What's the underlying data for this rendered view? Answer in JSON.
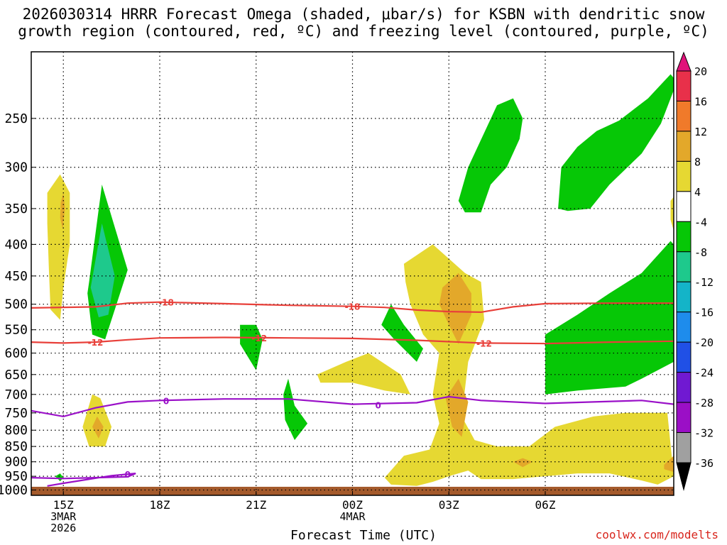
{
  "header": {
    "title_line1": "2026030314 HRRR Forecast Omega (shaded, μbar/s) for KSBN with dendritic snow",
    "title_line2": "growth region (contoured, red, ºC) and freezing level (contoured, purple, ºC)"
  },
  "footer": {
    "credit": "coolwx.com/modelts"
  },
  "chart_data": {
    "type": "heatmap",
    "title": "2026030314 HRRR Forecast Omega (shaded, μbar/s) for KSBN with dendritic snow growth region (contoured, red, ºC) and freezing level (contoured, purple, ºC)",
    "xlabel": "Forecast Time (UTC)",
    "ylabel": "",
    "x_range_hours_since_14z": [
      0,
      20
    ],
    "y_scale": "log",
    "y_range_hPa": [
      1020,
      195
    ],
    "y_ticks": [
      250,
      300,
      350,
      400,
      450,
      500,
      550,
      600,
      650,
      700,
      750,
      800,
      850,
      900,
      950,
      1000
    ],
    "x_ticks": [
      {
        "hour": 1,
        "lines": [
          "15Z",
          "3MAR",
          "2026"
        ]
      },
      {
        "hour": 4,
        "lines": [
          "18Z"
        ]
      },
      {
        "hour": 7,
        "lines": [
          "21Z"
        ]
      },
      {
        "hour": 10,
        "lines": [
          "00Z",
          "4MAR"
        ]
      },
      {
        "hour": 13,
        "lines": [
          "03Z"
        ]
      },
      {
        "hour": 16,
        "lines": [
          "06Z"
        ]
      }
    ],
    "grid": true,
    "colorbar": {
      "labels": [
        "20",
        "16",
        "12",
        "8",
        "4",
        "-4",
        "-8",
        "-12",
        "-16",
        "-20",
        "-24",
        "-28",
        "-32",
        "-36"
      ],
      "colors": [
        "#e8304a",
        "#f07a2a",
        "#e3a82a",
        "#e6d832",
        "#ffffff",
        "#06c706",
        "#1ec98c",
        "#14b4c8",
        "#1e8cec",
        "#2050e6",
        "#7019d2",
        "#9b0fc6",
        "#a0a0a0"
      ],
      "top_arrow_color": "#e0127a",
      "bottom_arrow_color": "#000000"
    },
    "contours": [
      {
        "name": "-18",
        "color": "#e8403a",
        "points": [
          [
            0,
            507
          ],
          [
            2,
            505
          ],
          [
            3,
            498
          ],
          [
            4,
            496
          ],
          [
            6,
            499
          ],
          [
            8,
            502
          ],
          [
            10,
            504
          ],
          [
            11,
            506
          ],
          [
            12,
            511
          ],
          [
            13,
            514
          ],
          [
            14,
            515
          ],
          [
            15,
            505
          ],
          [
            16,
            499
          ],
          [
            18,
            498
          ],
          [
            20,
            498
          ]
        ],
        "labels": [
          [
            4.2,
            496
          ],
          [
            10,
            504
          ]
        ]
      },
      {
        "name": "-12",
        "color": "#e8403a",
        "points": [
          [
            0,
            576
          ],
          [
            1,
            578
          ],
          [
            2,
            576
          ],
          [
            3,
            571
          ],
          [
            4,
            567
          ],
          [
            6,
            566
          ],
          [
            8,
            567
          ],
          [
            10,
            568
          ],
          [
            12,
            572
          ],
          [
            14,
            578
          ],
          [
            16,
            579
          ],
          [
            18,
            576
          ],
          [
            20,
            574
          ]
        ],
        "labels": [
          [
            2,
            576
          ],
          [
            7.1,
            567
          ],
          [
            14.1,
            578
          ]
        ]
      },
      {
        "name": "0",
        "color": "#9a10c8",
        "points": [
          [
            0,
            744
          ],
          [
            1,
            760
          ],
          [
            2,
            736
          ],
          [
            3,
            720
          ],
          [
            4,
            716
          ],
          [
            6,
            712
          ],
          [
            8,
            712
          ],
          [
            10,
            726
          ],
          [
            12,
            722
          ],
          [
            13,
            706
          ],
          [
            14,
            716
          ],
          [
            16,
            724
          ],
          [
            17.5,
            720
          ],
          [
            19,
            716
          ],
          [
            20,
            726
          ]
        ],
        "labels": [
          [
            4.2,
            716
          ],
          [
            10.8,
            728
          ]
        ]
      },
      {
        "name": "0",
        "color": "#9a10c8",
        "points": [
          [
            0,
            955
          ],
          [
            1,
            958
          ],
          [
            2,
            955
          ],
          [
            3,
            952
          ],
          [
            3.25,
            940
          ],
          [
            2.5,
            948
          ],
          [
            1,
            975
          ],
          [
            0.5,
            985
          ]
        ],
        "labels": [
          [
            3,
            942
          ]
        ]
      }
    ],
    "omega_regions": [
      {
        "level": "4",
        "color": "#e6d832",
        "points": [
          [
            0.5,
            330
          ],
          [
            0.9,
            308
          ],
          [
            1.2,
            330
          ],
          [
            1.2,
            400
          ],
          [
            1.0,
            470
          ],
          [
            0.9,
            530
          ],
          [
            0.6,
            510
          ],
          [
            0.55,
            440
          ],
          [
            0.5,
            370
          ]
        ]
      },
      {
        "level": "8",
        "color": "#e3a82a",
        "points": [
          [
            0.92,
            342
          ],
          [
            1.0,
            330
          ],
          [
            1.05,
            350
          ],
          [
            0.98,
            378
          ],
          [
            0.9,
            362
          ]
        ]
      },
      {
        "level": "-4",
        "color": "#06c706",
        "points": [
          [
            1.8,
            460
          ],
          [
            2.2,
            320
          ],
          [
            3.0,
            440
          ],
          [
            2.3,
            570
          ],
          [
            1.9,
            560
          ],
          [
            1.75,
            480
          ]
        ]
      },
      {
        "level": "-8",
        "color": "#1ec98c",
        "points": [
          [
            1.85,
            470
          ],
          [
            2.2,
            370
          ],
          [
            2.6,
            450
          ],
          [
            2.4,
            520
          ],
          [
            2.1,
            525
          ]
        ]
      },
      {
        "level": "4",
        "color": "#e6d832",
        "points": [
          [
            1.6,
            790
          ],
          [
            1.9,
            700
          ],
          [
            2.15,
            710
          ],
          [
            2.5,
            790
          ],
          [
            2.3,
            850
          ],
          [
            1.8,
            850
          ]
        ]
      },
      {
        "level": "8",
        "color": "#e3a82a",
        "points": [
          [
            1.9,
            790
          ],
          [
            2.05,
            760
          ],
          [
            2.25,
            790
          ],
          [
            2.1,
            825
          ]
        ]
      },
      {
        "level": "-4",
        "color": "#06c706",
        "points": [
          [
            0.75,
            950
          ],
          [
            0.9,
            940
          ],
          [
            1.0,
            955
          ],
          [
            0.9,
            968
          ]
        ]
      },
      {
        "level": "-4",
        "color": "#06c706",
        "points": [
          [
            6.5,
            540
          ],
          [
            7.0,
            540
          ],
          [
            7.2,
            570
          ],
          [
            7.0,
            640
          ],
          [
            6.5,
            580
          ]
        ]
      },
      {
        "level": "-4",
        "color": "#06c706",
        "points": [
          [
            7.85,
            700
          ],
          [
            8.0,
            660
          ],
          [
            8.2,
            730
          ],
          [
            8.6,
            780
          ],
          [
            8.2,
            830
          ],
          [
            7.9,
            770
          ]
        ]
      },
      {
        "level": "4",
        "color": "#e6d832",
        "points": [
          [
            8.9,
            650
          ],
          [
            9.8,
            620
          ],
          [
            10.5,
            600
          ],
          [
            11.5,
            650
          ],
          [
            11.8,
            700
          ],
          [
            11.0,
            690
          ],
          [
            10.0,
            670
          ],
          [
            9.0,
            670
          ]
        ]
      },
      {
        "level": "-4",
        "color": "#06c706",
        "points": [
          [
            10.9,
            540
          ],
          [
            11.2,
            500
          ],
          [
            11.6,
            540
          ],
          [
            12.2,
            590
          ],
          [
            12.0,
            620
          ],
          [
            11.3,
            570
          ]
        ]
      },
      {
        "level": "4",
        "color": "#e6d832",
        "points": [
          [
            11.6,
            430
          ],
          [
            12.5,
            400
          ],
          [
            13.5,
            445
          ],
          [
            14.0,
            460
          ],
          [
            14.1,
            530
          ],
          [
            13.6,
            620
          ],
          [
            13.4,
            760
          ],
          [
            13.8,
            830
          ],
          [
            14.5,
            850
          ],
          [
            15.5,
            850
          ],
          [
            16.3,
            790
          ],
          [
            17.5,
            760
          ],
          [
            18.5,
            750
          ],
          [
            19.8,
            750
          ],
          [
            20,
            950
          ],
          [
            19.5,
            980
          ],
          [
            19.0,
            965
          ],
          [
            18.0,
            940
          ],
          [
            17.0,
            940
          ],
          [
            15.0,
            960
          ],
          [
            14.0,
            960
          ],
          [
            13.6,
            930
          ],
          [
            13.0,
            950
          ],
          [
            12.5,
            970
          ],
          [
            12.0,
            985
          ],
          [
            11.2,
            980
          ],
          [
            11.0,
            955
          ],
          [
            11.6,
            880
          ],
          [
            12.4,
            860
          ],
          [
            12.7,
            780
          ],
          [
            12.5,
            700
          ],
          [
            12.7,
            600
          ],
          [
            12.2,
            560
          ],
          [
            11.8,
            500
          ],
          [
            11.65,
            460
          ]
        ]
      },
      {
        "level": "8",
        "color": "#e3a82a",
        "points": [
          [
            12.8,
            470
          ],
          [
            13.3,
            445
          ],
          [
            13.7,
            480
          ],
          [
            13.7,
            520
          ],
          [
            13.3,
            580
          ],
          [
            13.0,
            540
          ],
          [
            12.7,
            500
          ]
        ]
      },
      {
        "level": "8",
        "color": "#e3a82a",
        "points": [
          [
            12.9,
            710
          ],
          [
            13.3,
            660
          ],
          [
            13.6,
            720
          ],
          [
            13.4,
            820
          ],
          [
            13.1,
            790
          ]
        ]
      },
      {
        "level": "8",
        "color": "#e3a82a",
        "points": [
          [
            15.0,
            900
          ],
          [
            15.3,
            888
          ],
          [
            15.6,
            900
          ],
          [
            15.3,
            918
          ]
        ]
      },
      {
        "level": "8",
        "color": "#e3a82a",
        "points": [
          [
            19.7,
            910
          ],
          [
            20,
            880
          ],
          [
            20,
            935
          ],
          [
            19.7,
            925
          ]
        ]
      },
      {
        "level": "-4",
        "color": "#06c706",
        "points": [
          [
            13.6,
            300
          ],
          [
            14.5,
            238
          ],
          [
            15.0,
            232
          ],
          [
            15.3,
            250
          ],
          [
            15.2,
            270
          ],
          [
            14.8,
            300
          ],
          [
            14.3,
            320
          ],
          [
            14.0,
            355
          ],
          [
            13.5,
            355
          ],
          [
            13.3,
            340
          ]
        ]
      },
      {
        "level": "-4",
        "color": "#06c706",
        "points": [
          [
            16.4,
            350
          ],
          [
            16.5,
            300
          ],
          [
            17.0,
            278
          ],
          [
            17.6,
            262
          ],
          [
            18.3,
            252
          ],
          [
            19.2,
            232
          ],
          [
            19.9,
            212
          ],
          [
            20,
            215
          ],
          [
            20,
            225
          ],
          [
            19.6,
            255
          ],
          [
            19.0,
            285
          ],
          [
            18.0,
            320
          ],
          [
            17.4,
            350
          ],
          [
            16.7,
            353
          ]
        ]
      },
      {
        "level": "4",
        "color": "#e6d832",
        "points": [
          [
            19.9,
            340
          ],
          [
            20,
            335
          ],
          [
            20,
            380
          ],
          [
            19.9,
            365
          ]
        ]
      },
      {
        "level": "-4",
        "color": "#06c706",
        "points": [
          [
            16.0,
            560
          ],
          [
            17.0,
            520
          ],
          [
            18.0,
            480
          ],
          [
            19.0,
            445
          ],
          [
            19.9,
            395
          ],
          [
            20,
            400
          ],
          [
            20,
            620
          ],
          [
            19.0,
            660
          ],
          [
            18.5,
            680
          ],
          [
            17.0,
            690
          ],
          [
            16.0,
            700
          ]
        ]
      }
    ]
  }
}
